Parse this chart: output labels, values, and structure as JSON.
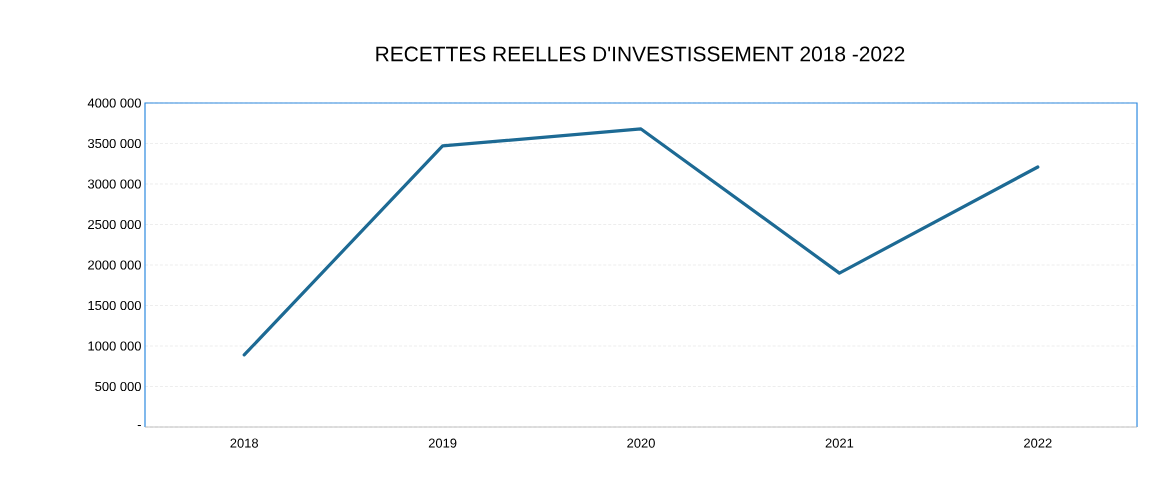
{
  "chart_data": {
    "type": "line",
    "title": "RECETTES REELLES D'INVESTISSEMENT 2018 -2022",
    "categories": [
      "2018",
      "2019",
      "2020",
      "2021",
      "2022"
    ],
    "series": [
      {
        "color": "#1d6a94",
        "values": [
          890000,
          3470000,
          3680000,
          1900000,
          3210000
        ]
      }
    ],
    "ylim": [
      0,
      4000000
    ],
    "yticks": [
      {
        "value": 0,
        "label": "-"
      },
      {
        "value": 500000,
        "label": "500 000"
      },
      {
        "value": 1000000,
        "label": "1000 000"
      },
      {
        "value": 1500000,
        "label": "1500 000"
      },
      {
        "value": 2000000,
        "label": "2000 000"
      },
      {
        "value": 2500000,
        "label": "2500 000"
      },
      {
        "value": 3000000,
        "label": "3000 000"
      },
      {
        "value": 3500000,
        "label": "3500 000"
      },
      {
        "value": 4000000,
        "label": "4000 000"
      }
    ],
    "grid": "y",
    "marker": "none",
    "line_style": "solid"
  }
}
